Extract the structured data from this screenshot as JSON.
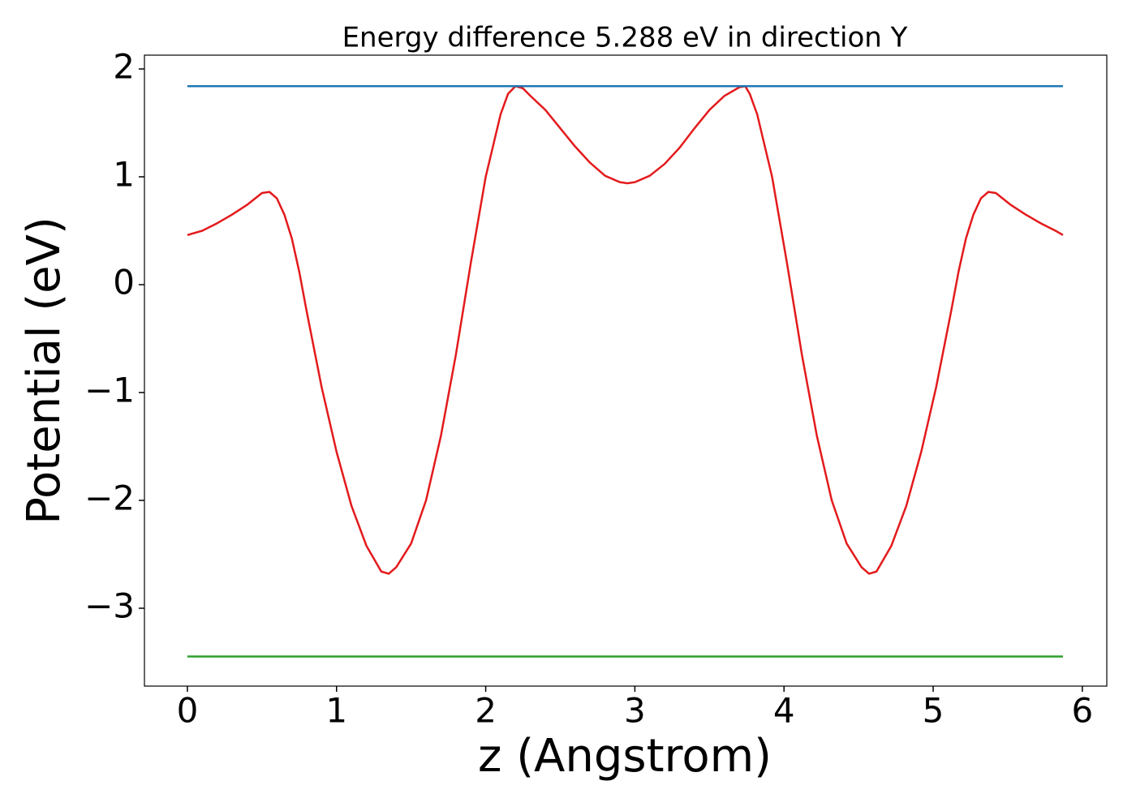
{
  "chart_data": {
    "type": "line",
    "title": "Energy difference 5.288 eV in direction Y",
    "xlabel": "z (Angstrom)",
    "ylabel": "Potential (eV)",
    "xlim": [
      -0.288,
      6.164
    ],
    "ylim": [
      -3.722,
      2.128
    ],
    "xticks": [
      0,
      1,
      2,
      3,
      4,
      5,
      6
    ],
    "yticks": [
      {
        "value": -3,
        "label": "−3"
      },
      {
        "value": -2,
        "label": "−2"
      },
      {
        "value": -1,
        "label": "−1"
      },
      0,
      1,
      2
    ],
    "grid": false,
    "series": [
      {
        "color": "#e31a1c",
        "x": [
          0,
          0.1,
          0.2,
          0.3,
          0.4,
          0.5,
          0.55,
          0.6,
          0.65,
          0.7,
          0.75,
          0.8,
          0.9,
          1.0,
          1.1,
          1.2,
          1.3,
          1.35,
          1.4,
          1.5,
          1.6,
          1.7,
          1.8,
          1.9,
          2.0,
          2.1,
          2.15,
          2.2,
          2.25,
          2.3,
          2.4,
          2.5,
          2.6,
          2.7,
          2.8,
          2.9,
          2.95,
          3.0,
          3.1,
          3.2,
          3.3,
          3.4,
          3.5,
          3.6,
          3.7,
          3.74,
          3.77,
          3.82,
          3.92,
          4.02,
          4.12,
          4.22,
          4.32,
          4.42,
          4.52,
          4.57,
          4.62,
          4.72,
          4.82,
          4.92,
          5.02,
          5.12,
          5.17,
          5.22,
          5.27,
          5.32,
          5.37,
          5.42,
          5.52,
          5.62,
          5.72,
          5.82,
          5.87
        ],
        "values": [
          0.46,
          0.5,
          0.57,
          0.65,
          0.74,
          0.85,
          0.86,
          0.8,
          0.65,
          0.43,
          0.12,
          -0.25,
          -0.95,
          -1.55,
          -2.05,
          -2.42,
          -2.66,
          -2.68,
          -2.62,
          -2.4,
          -2.0,
          -1.4,
          -0.65,
          0.2,
          1.0,
          1.58,
          1.77,
          1.84,
          1.82,
          1.75,
          1.62,
          1.45,
          1.28,
          1.13,
          1.01,
          0.95,
          0.94,
          0.95,
          1.01,
          1.12,
          1.27,
          1.45,
          1.62,
          1.75,
          1.83,
          1.84,
          1.77,
          1.58,
          1.0,
          0.2,
          -0.65,
          -1.4,
          -2.0,
          -2.4,
          -2.62,
          -2.68,
          -2.66,
          -2.42,
          -2.05,
          -1.55,
          -0.95,
          -0.25,
          0.12,
          0.43,
          0.65,
          0.8,
          0.86,
          0.85,
          0.74,
          0.65,
          0.57,
          0.5,
          0.46
        ]
      },
      {
        "color": "#1f77b4",
        "x": [
          0,
          5.87
        ],
        "values": [
          1.84,
          1.84
        ]
      },
      {
        "color": "#2ca02c",
        "x": [
          0,
          5.87
        ],
        "values": [
          -3.448,
          -3.448
        ]
      }
    ]
  }
}
